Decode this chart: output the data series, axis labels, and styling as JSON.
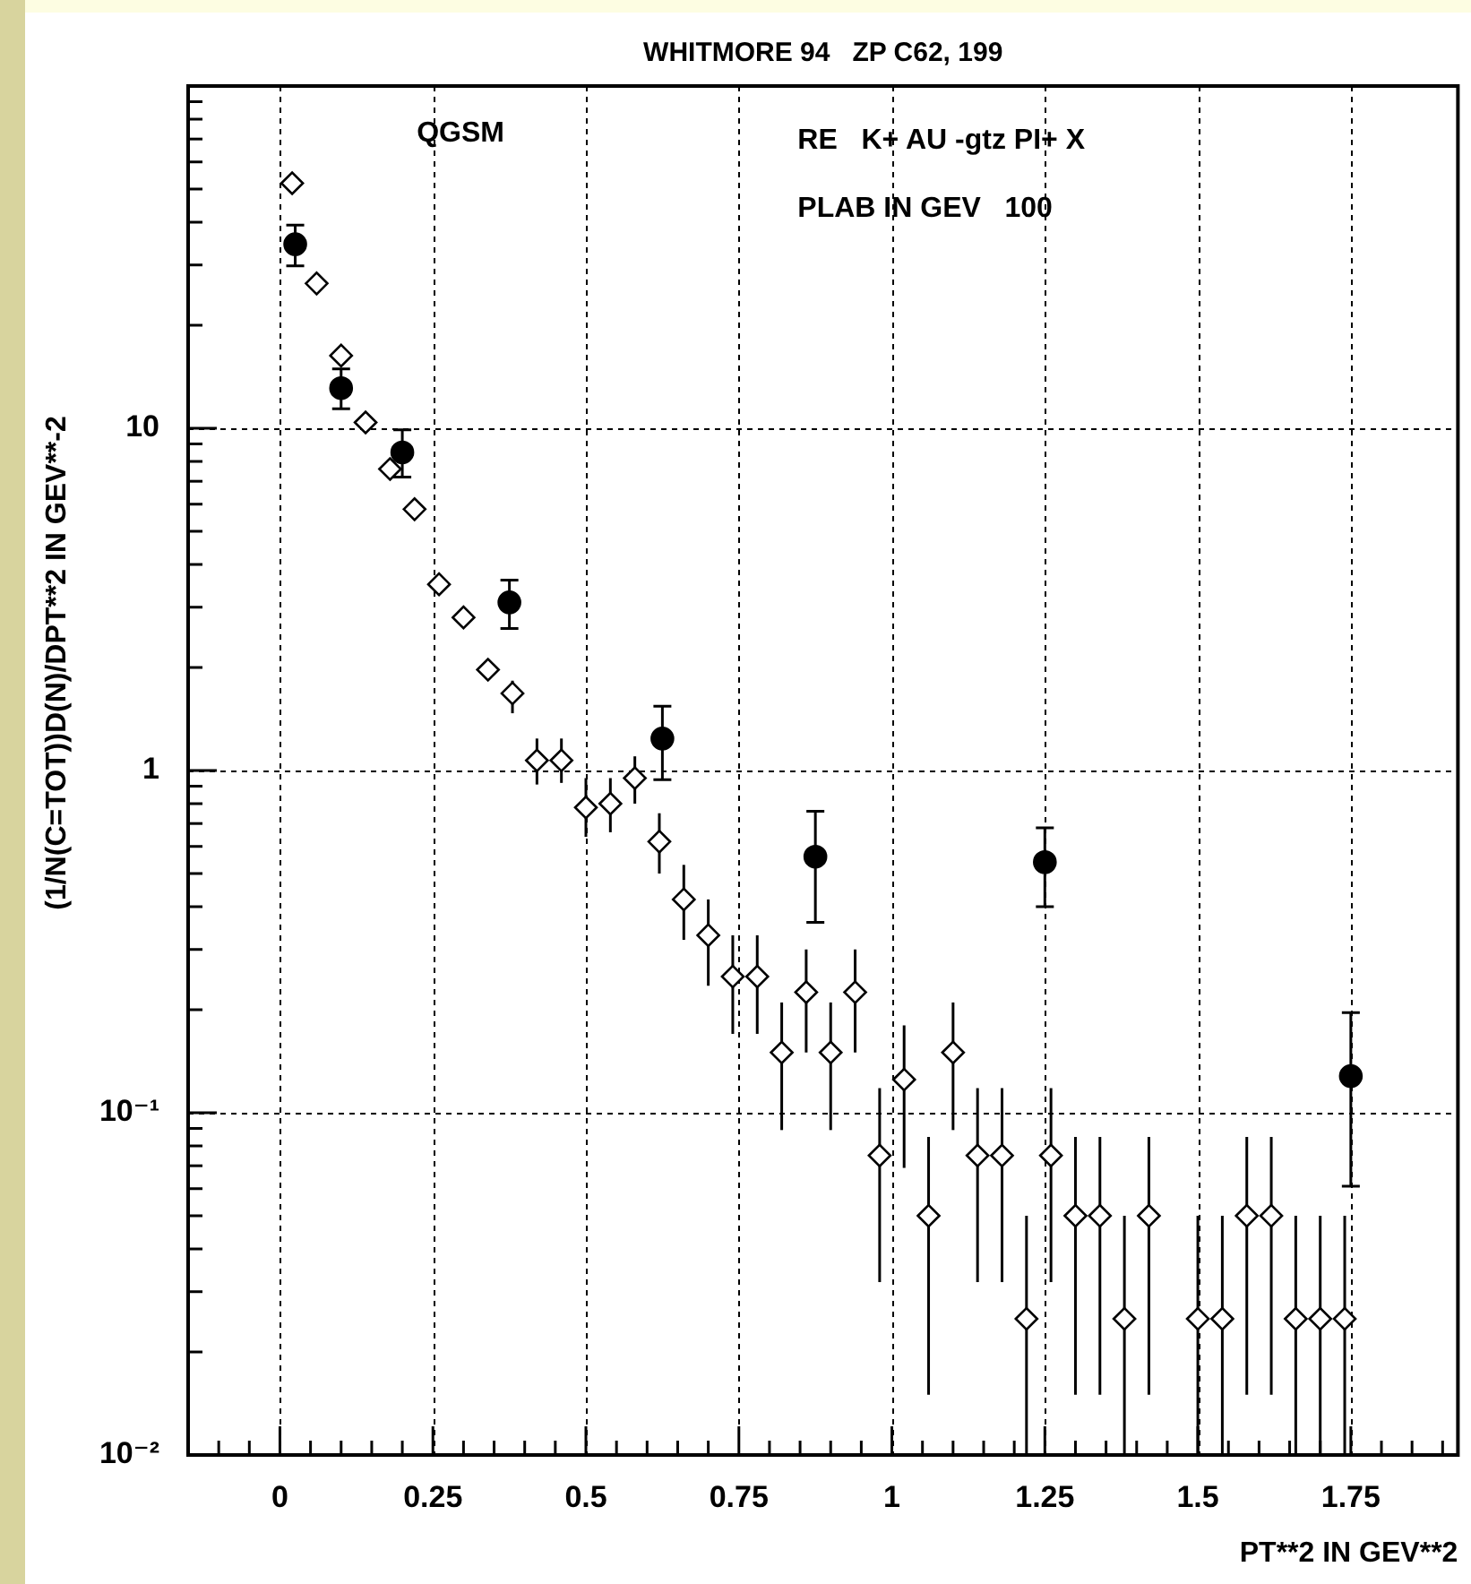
{
  "chart_data": {
    "type": "scatter",
    "title": "WHITMORE 94   ZP C62, 199",
    "xlabel": "PT**2 IN GEV**2",
    "ylabel": "(1/N(C=TOT))D(N)/DPT**2 IN GEV**-2",
    "annotations": [
      "QGSM",
      "RE   K+ AU -gtz PI+ X",
      "PLAB IN GEV   100"
    ],
    "log": "y",
    "grid": true,
    "legend": false,
    "xlim": [
      -0.15,
      1.925
    ],
    "ylim": [
      0.01,
      100
    ],
    "xticks": [
      {
        "value": -0.1,
        "label": null
      },
      {
        "value": -0.05,
        "label": null
      },
      0,
      {
        "value": 0.05,
        "label": null
      },
      {
        "value": 0.1,
        "label": null
      },
      {
        "value": 0.15,
        "label": null
      },
      {
        "value": 0.2,
        "label": null
      },
      0.25,
      {
        "value": 0.3,
        "label": null
      },
      {
        "value": 0.35,
        "label": null
      },
      {
        "value": 0.4,
        "label": null
      },
      {
        "value": 0.45,
        "label": null
      },
      0.5,
      {
        "value": 0.55,
        "label": null
      },
      {
        "value": 0.6,
        "label": null
      },
      {
        "value": 0.65,
        "label": null
      },
      {
        "value": 0.7,
        "label": null
      },
      0.75,
      {
        "value": 0.8,
        "label": null
      },
      {
        "value": 0.85,
        "label": null
      },
      {
        "value": 0.9,
        "label": null
      },
      {
        "value": 0.95,
        "label": null
      },
      1,
      {
        "value": 1.05,
        "label": null
      },
      {
        "value": 1.1,
        "label": null
      },
      {
        "value": 1.15,
        "label": null
      },
      {
        "value": 1.2,
        "label": null
      },
      1.25,
      {
        "value": 1.3,
        "label": null
      },
      {
        "value": 1.35,
        "label": null
      },
      {
        "value": 1.4,
        "label": null
      },
      {
        "value": 1.45,
        "label": null
      },
      1.5,
      {
        "value": 1.55,
        "label": null
      },
      {
        "value": 1.6,
        "label": null
      },
      {
        "value": 1.65,
        "label": null
      },
      {
        "value": 1.7,
        "label": null
      },
      1.75,
      {
        "value": 1.8,
        "label": null
      },
      {
        "value": 1.85,
        "label": null
      },
      {
        "value": 1.9,
        "label": null
      }
    ],
    "yticks": [
      {
        "value": 0.01,
        "label": "10⁻²"
      },
      {
        "value": 0.02,
        "label": null
      },
      {
        "value": 0.03,
        "label": null
      },
      {
        "value": 0.04,
        "label": null
      },
      {
        "value": 0.05,
        "label": null
      },
      {
        "value": 0.06,
        "label": null
      },
      {
        "value": 0.07,
        "label": null
      },
      {
        "value": 0.08,
        "label": null
      },
      {
        "value": 0.09,
        "label": null
      },
      {
        "value": 0.1,
        "label": "10⁻¹"
      },
      {
        "value": 0.2,
        "label": null
      },
      {
        "value": 0.3,
        "label": null
      },
      {
        "value": 0.4,
        "label": null
      },
      {
        "value": 0.5,
        "label": null
      },
      {
        "value": 0.6,
        "label": null
      },
      {
        "value": 0.7,
        "label": null
      },
      {
        "value": 0.8,
        "label": null
      },
      {
        "value": 0.9,
        "label": null
      },
      1,
      {
        "value": 2,
        "label": null
      },
      {
        "value": 3,
        "label": null
      },
      {
        "value": 4,
        "label": null
      },
      {
        "value": 5,
        "label": null
      },
      {
        "value": 6,
        "label": null
      },
      {
        "value": 7,
        "label": null
      },
      {
        "value": 8,
        "label": null
      },
      {
        "value": 9,
        "label": null
      },
      10,
      {
        "value": 20,
        "label": null
      },
      {
        "value": 30,
        "label": null
      },
      {
        "value": 40,
        "label": null
      },
      {
        "value": 50,
        "label": null
      },
      {
        "value": 60,
        "label": null
      },
      {
        "value": 70,
        "label": null
      },
      {
        "value": 80,
        "label": null
      },
      {
        "value": 90,
        "label": null
      }
    ],
    "series": [
      {
        "color": "#000000",
        "marker": "circle",
        "x": [
          0.025,
          0.1,
          0.2,
          0.375,
          0.625,
          0.875,
          1.25,
          1.75
        ],
        "values": [
          34.5,
          13.1,
          8.5,
          3.1,
          1.24,
          0.56,
          0.54,
          0.128
        ],
        "errors": [
          [
            29.8,
            39.2
          ],
          [
            11.4,
            14.9
          ],
          [
            7.2,
            9.9
          ],
          [
            2.6,
            3.6
          ],
          [
            0.94,
            1.54
          ],
          [
            0.36,
            0.76
          ],
          [
            0.4,
            0.68
          ],
          [
            0.061,
            0.196
          ]
        ]
      },
      {
        "color": "#000000",
        "marker": "diamond",
        "x": [
          0.02,
          0.06,
          0.1,
          0.14,
          0.18,
          0.22,
          0.26,
          0.3,
          0.34,
          0.38,
          0.42,
          0.46,
          0.5,
          0.54,
          0.58,
          0.62,
          0.66,
          0.7,
          0.74,
          0.78,
          0.82,
          0.86,
          0.9,
          0.94,
          0.98,
          1.02,
          1.06,
          1.1,
          1.14,
          1.18,
          1.22,
          1.26,
          1.3,
          1.34,
          1.38,
          1.42,
          1.5,
          1.54,
          1.58,
          1.62,
          1.66,
          1.7,
          1.74
        ],
        "values": [
          52,
          26.5,
          16.3,
          10.4,
          7.6,
          5.8,
          3.5,
          2.8,
          1.97,
          1.68,
          1.07,
          1.07,
          0.78,
          0.8,
          0.95,
          0.62,
          0.42,
          0.33,
          0.25,
          0.25,
          0.15,
          0.225,
          0.15,
          0.225,
          0.075,
          0.125,
          0.05,
          0.15,
          0.075,
          0.075,
          0.025,
          0.075,
          0.05,
          0.05,
          0.025,
          0.05,
          0.025,
          0.025,
          0.05,
          0.05,
          0.025,
          0.025,
          0.025
        ],
        "errors": [
          null,
          null,
          null,
          null,
          null,
          null,
          null,
          null,
          null,
          [
            1.47,
            1.83
          ],
          [
            0.91,
            1.24
          ],
          [
            0.92,
            1.24
          ],
          [
            0.64,
            0.95
          ],
          [
            0.66,
            0.95
          ],
          [
            0.8,
            1.1
          ],
          [
            0.5,
            0.75
          ],
          [
            0.32,
            0.53
          ],
          [
            0.235,
            0.42
          ],
          [
            0.17,
            0.33
          ],
          [
            0.17,
            0.33
          ],
          [
            0.089,
            0.21
          ],
          [
            0.15,
            0.3
          ],
          [
            0.089,
            0.21
          ],
          [
            0.15,
            0.3
          ],
          [
            0.032,
            0.118
          ],
          [
            0.069,
            0.18
          ],
          [
            0.015,
            0.085
          ],
          [
            0.089,
            0.21
          ],
          [
            0.032,
            0.118
          ],
          [
            0.032,
            0.118
          ],
          [
            0.01,
            0.05
          ],
          [
            0.032,
            0.118
          ],
          [
            0.015,
            0.085
          ],
          [
            0.015,
            0.085
          ],
          [
            0.01,
            0.05
          ],
          [
            0.015,
            0.085
          ],
          [
            0.01,
            0.05
          ],
          [
            0.01,
            0.05
          ],
          [
            0.015,
            0.085
          ],
          [
            0.015,
            0.085
          ],
          [
            0.01,
            0.05
          ],
          [
            0.01,
            0.05
          ],
          [
            0.01,
            0.05
          ]
        ]
      }
    ]
  }
}
